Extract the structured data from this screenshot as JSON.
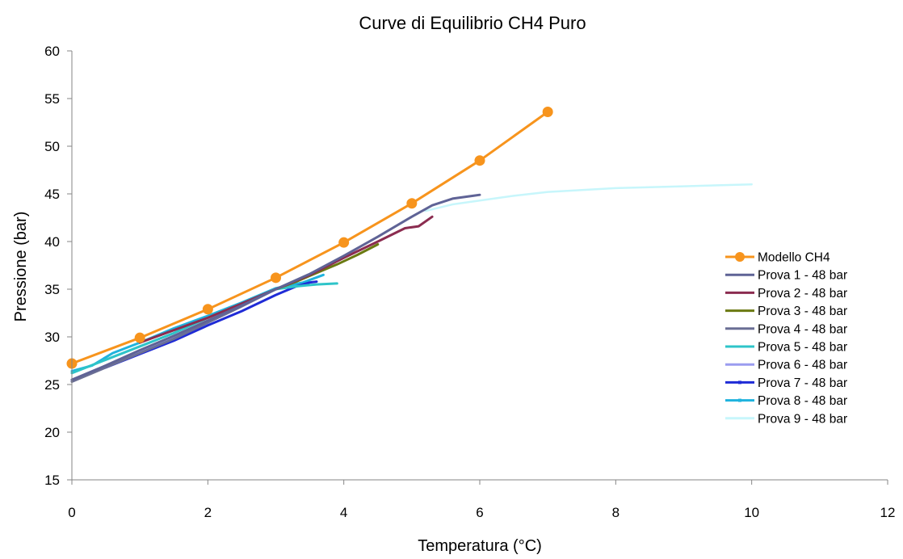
{
  "chart_data": {
    "type": "line",
    "title": "Curve di Equilibrio CH4 Puro",
    "xlabel": "Temperatura (°C)",
    "ylabel": "Pressione (bar)",
    "xlim": [
      0,
      12
    ],
    "ylim": [
      15,
      60
    ],
    "xticks": [
      "0",
      "2",
      "4",
      "6",
      "8",
      "10",
      "12"
    ],
    "yticks": [
      "15",
      "20",
      "25",
      "30",
      "35",
      "40",
      "45",
      "50",
      "55",
      "60"
    ],
    "grid": false,
    "legend_position": "right",
    "series": [
      {
        "name": "Modello CH4",
        "color": "#f7941d",
        "marker": "circle",
        "x": [
          0,
          1,
          2,
          3,
          4,
          5,
          6,
          7
        ],
        "y": [
          27.2,
          29.9,
          32.9,
          36.2,
          39.9,
          44.0,
          48.5,
          53.6
        ]
      },
      {
        "name": "Prova 1 - 48 bar",
        "color": "#5f6396",
        "marker": "none",
        "x": [
          0,
          0.5,
          1,
          1.5,
          2,
          2.5,
          3,
          3.5,
          4,
          4.5,
          5,
          5.3,
          5.6,
          5.9,
          6.0
        ],
        "y": [
          25.5,
          27.0,
          28.6,
          30.1,
          31.7,
          33.3,
          35.0,
          36.6,
          38.5,
          40.5,
          42.6,
          43.8,
          44.5,
          44.8,
          44.9
        ]
      },
      {
        "name": "Prova 2 - 48 bar",
        "color": "#8b2c50",
        "marker": "none",
        "x": [
          1.0,
          1.5,
          2,
          2.5,
          3,
          3.5,
          4,
          4.5,
          4.9,
          5.1,
          5.3
        ],
        "y": [
          29.4,
          30.7,
          32.0,
          33.5,
          35.0,
          36.5,
          38.3,
          40.0,
          41.4,
          41.6,
          42.6
        ]
      },
      {
        "name": "Prova 3 - 48 bar",
        "color": "#6b7a12",
        "marker": "none",
        "x": [
          3.0,
          3.3,
          3.6,
          3.9,
          4.2,
          4.5
        ],
        "y": [
          35.0,
          35.8,
          36.7,
          37.6,
          38.6,
          39.7
        ]
      },
      {
        "name": "Prova 4 - 48 bar",
        "color": "#6a6e94",
        "marker": "none",
        "x": [
          0,
          0.5,
          1,
          1.5,
          2,
          2.5,
          3,
          3.3
        ],
        "y": [
          25.3,
          26.8,
          28.3,
          29.8,
          31.5,
          33.2,
          35.0,
          35.8
        ]
      },
      {
        "name": "Prova 5 - 48 bar",
        "color": "#2ec4c9",
        "marker": "none",
        "x": [
          0,
          0.5,
          1,
          1.5,
          2,
          2.5,
          3,
          3.3,
          3.6,
          3.9
        ],
        "y": [
          26.2,
          27.6,
          29.0,
          30.4,
          32.0,
          33.5,
          35.0,
          35.3,
          35.5,
          35.6
        ]
      },
      {
        "name": "Prova 6 - 48 bar",
        "color": "#9b9cf0",
        "marker": "none",
        "x": [
          0,
          0.5,
          1,
          1.5,
          2
        ],
        "y": [
          25.4,
          26.9,
          28.5,
          30.0,
          31.5
        ]
      },
      {
        "name": "Prova 7 - 48 bar",
        "color": "#1f2bd6",
        "marker": "small",
        "x": [
          0,
          0.5,
          1,
          1.5,
          2,
          2.5,
          3,
          3.3,
          3.5,
          3.6
        ],
        "y": [
          25.5,
          26.8,
          28.2,
          29.6,
          31.2,
          32.7,
          34.4,
          35.3,
          35.7,
          35.8
        ]
      },
      {
        "name": "Prova 8 - 48 bar",
        "color": "#1fb3de",
        "marker": "small",
        "x": [
          0,
          0.3,
          0.6,
          1,
          1.5,
          2,
          2.5,
          3,
          3.4,
          3.7
        ],
        "y": [
          26.4,
          27.0,
          28.3,
          29.4,
          30.9,
          32.2,
          33.6,
          35.1,
          35.7,
          36.5
        ]
      },
      {
        "name": "Prova 9 - 48 bar",
        "color": "#c7f6fb",
        "marker": "none",
        "x": [
          5.2,
          5.6,
          6,
          6.5,
          7,
          7.5,
          8,
          8.5,
          9,
          9.5,
          10
        ],
        "y": [
          43.2,
          43.9,
          44.3,
          44.8,
          45.2,
          45.4,
          45.6,
          45.7,
          45.8,
          45.9,
          46.0
        ]
      }
    ]
  }
}
